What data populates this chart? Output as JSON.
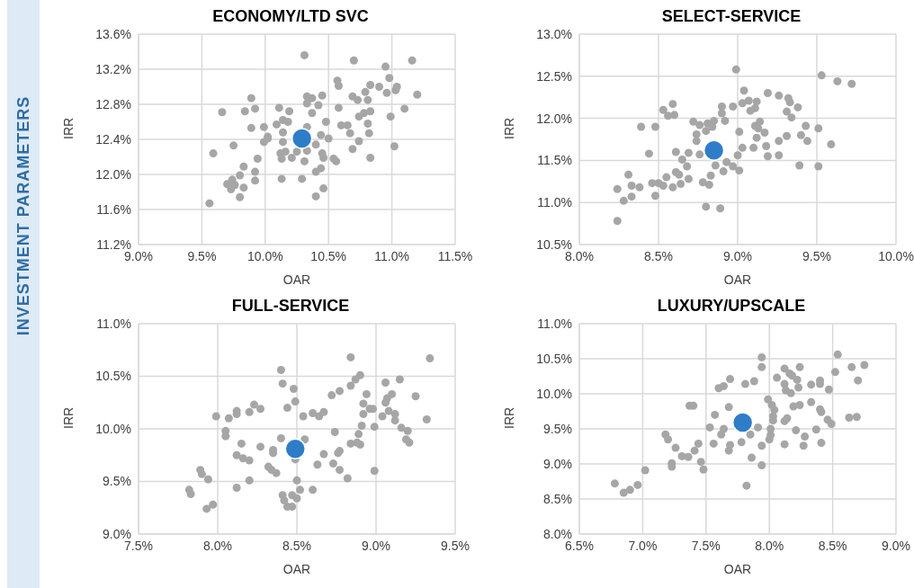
{
  "chart_data": [
    {
      "type": "scatter",
      "title": "ECONOMY/LTD SVC",
      "xlabel": "OAR",
      "ylabel": "IRR",
      "annotations": [
        "INVESTMENT PARAMETERS"
      ],
      "marker": "circle",
      "grid": true,
      "xlim": [
        9.0,
        11.5
      ],
      "xticks": [
        {
          "value": 9.0,
          "label": "9.0%"
        },
        {
          "value": 9.5,
          "label": "9.5%"
        },
        {
          "value": 10.0,
          "label": "10.0%"
        },
        {
          "value": 10.5,
          "label": "10.5%"
        },
        {
          "value": 11.0,
          "label": "11.0%"
        },
        {
          "value": 11.5,
          "label": "11.5%"
        }
      ],
      "ylim": [
        11.2,
        13.6
      ],
      "yticks": [
        {
          "value": 11.2,
          "label": "11.2%"
        },
        {
          "value": 11.6,
          "label": "11.6%"
        },
        {
          "value": 12.0,
          "label": "12.0%"
        },
        {
          "value": 12.4,
          "label": "12.4%"
        },
        {
          "value": 12.8,
          "label": "12.8%"
        },
        {
          "value": 13.2,
          "label": "13.2%"
        },
        {
          "value": 13.6,
          "label": "13.6%"
        }
      ],
      "series": [
        {
          "color": "#a6a6a6",
          "x": [
            10.31,
            10.7,
            11.16,
            10.95,
            10.57,
            10.58,
            10.98,
            10.83,
            10.9,
            11.04,
            11.03,
            10.79,
            10.96,
            11.2,
            10.69,
            10.73,
            10.81,
            10.33,
            10.37,
            10.45,
            10.33,
            10.42,
            9.89,
            9.66,
            9.84,
            9.92,
            10.11,
            10.19,
            10.37,
            10.58,
            10.83,
            10.78,
            10.74,
            11.1,
            10.99,
            10.48,
            10.81,
            10.6,
            10.65,
            10.67,
            10.82,
            9.89,
            9.99,
            10.09,
            10.14,
            10.18,
            10.14,
            10.02,
            10.02,
            9.99,
            10.33,
            10.44,
            10.5,
            10.14,
            9.75,
            10.4,
            10.74,
            10.69,
            11.02,
            9.59,
            10.12,
            10.16,
            10.25,
            10.33,
            10.13,
            10.21,
            10.31,
            10.45,
            10.46,
            10.54,
            10.56,
            10.83,
            9.94,
            9.83,
            9.92,
            9.92,
            9.8,
            9.74,
            9.7,
            9.76,
            9.73,
            9.83,
            9.8,
            9.56,
            10.13,
            10.29,
            10.4,
            10.44,
            10.46,
            10.4
          ],
          "values": [
            13.36,
            13.3,
            13.3,
            13.23,
            13.07,
            13.01,
            13.1,
            13.02,
            13.0,
            13.0,
            12.96,
            12.94,
            12.93,
            12.91,
            12.89,
            12.85,
            12.85,
            12.89,
            12.87,
            12.9,
            12.81,
            12.79,
            12.87,
            12.71,
            12.72,
            12.75,
            12.76,
            12.72,
            12.7,
            12.76,
            12.72,
            12.7,
            12.66,
            12.75,
            12.66,
            12.6,
            12.58,
            12.56,
            12.56,
            12.47,
            12.47,
            12.53,
            12.54,
            12.57,
            12.62,
            12.6,
            12.48,
            12.43,
            12.41,
            12.37,
            12.54,
            12.45,
            12.41,
            12.37,
            12.33,
            12.34,
            12.38,
            12.29,
            12.32,
            12.24,
            12.24,
            12.26,
            12.26,
            12.27,
            12.18,
            12.19,
            12.15,
            12.24,
            12.19,
            12.18,
            12.15,
            12.19,
            12.18,
            12.09,
            12.03,
            11.93,
            11.99,
            11.94,
            11.89,
            11.88,
            11.83,
            11.85,
            11.74,
            11.67,
            11.95,
            11.95,
            12.03,
            12.07,
            11.84,
            11.75
          ]
        },
        {
          "color": "#2e7dc9",
          "x": [
            10.29
          ],
          "values": [
            12.41
          ]
        }
      ]
    },
    {
      "type": "scatter",
      "title": "SELECT-SERVICE",
      "xlabel": "OAR",
      "ylabel": "IRR",
      "marker": "circle",
      "grid": true,
      "xlim": [
        8.0,
        10.0
      ],
      "xticks": [
        {
          "value": 8.0,
          "label": "8.0%"
        },
        {
          "value": 8.5,
          "label": "8.5%"
        },
        {
          "value": 9.0,
          "label": "9.0%"
        },
        {
          "value": 9.5,
          "label": "9.5%"
        },
        {
          "value": 10.0,
          "label": "10.0%"
        }
      ],
      "ylim": [
        10.5,
        13.0
      ],
      "yticks": [
        {
          "value": 10.5,
          "label": "10.5%"
        },
        {
          "value": 11.0,
          "label": "11.0%"
        },
        {
          "value": 11.5,
          "label": "11.5%"
        },
        {
          "value": 12.0,
          "label": "12.0%"
        },
        {
          "value": 12.5,
          "label": "12.5%"
        },
        {
          "value": 13.0,
          "label": "13.0%"
        }
      ],
      "series": [
        {
          "color": "#a6a6a6",
          "x": [
            8.99,
            9.53,
            9.63,
            9.72,
            9.04,
            9.19,
            9.26,
            9.32,
            9.33,
            9.38,
            9.31,
            9.34,
            9.07,
            9.12,
            9.03,
            9.11,
            9.08,
            8.97,
            8.9,
            8.9,
            8.59,
            8.53,
            8.56,
            8.6,
            8.39,
            8.48,
            8.72,
            8.76,
            8.81,
            8.85,
            8.84,
            8.8,
            8.92,
            8.74,
            8.74,
            9.01,
            9.14,
            9.11,
            9.13,
            9.17,
            9.12,
            9.26,
            9.31,
            9.43,
            9.51,
            9.4,
            9.44,
            9.59,
            9.1,
            9.18,
            9.03,
            9.0,
            9.19,
            9.26,
            9.39,
            9.51,
            8.44,
            8.61,
            8.69,
            8.76,
            8.65,
            8.68,
            8.86,
            8.93,
            8.97,
            9.01,
            8.91,
            8.83,
            8.78,
            8.82,
            8.61,
            8.63,
            8.69,
            8.64,
            8.55,
            8.53,
            8.59,
            8.46,
            8.5,
            8.48,
            8.31,
            8.33,
            8.38,
            8.24,
            8.33,
            8.28,
            8.8,
            8.89,
            8.24
          ],
          "values": [
            12.58,
            12.51,
            12.44,
            12.41,
            12.33,
            12.3,
            12.27,
            12.24,
            12.19,
            12.13,
            12.08,
            12.01,
            12.21,
            12.2,
            12.18,
            12.12,
            12.09,
            12.14,
            12.14,
            12.06,
            12.17,
            12.1,
            12.03,
            12.04,
            11.9,
            11.9,
            11.96,
            11.92,
            11.94,
            11.97,
            11.9,
            11.85,
            11.97,
            11.81,
            11.73,
            11.84,
            11.96,
            11.91,
            11.88,
            11.83,
            11.77,
            11.73,
            11.79,
            11.91,
            11.88,
            11.8,
            11.73,
            11.69,
            11.65,
            11.67,
            11.65,
            11.56,
            11.55,
            11.56,
            11.44,
            11.43,
            11.58,
            11.6,
            11.59,
            11.57,
            11.51,
            11.43,
            11.44,
            11.48,
            11.43,
            11.38,
            11.37,
            11.32,
            11.24,
            11.21,
            11.36,
            11.33,
            11.28,
            11.22,
            11.3,
            11.2,
            11.18,
            11.23,
            11.23,
            11.08,
            11.33,
            11.2,
            11.18,
            11.16,
            11.07,
            11.02,
            10.95,
            10.93,
            10.78
          ]
        },
        {
          "color": "#2e7dc9",
          "x": [
            8.85
          ],
          "values": [
            11.62
          ]
        }
      ]
    },
    {
      "type": "scatter",
      "title": "FULL-SERVICE",
      "xlabel": "OAR",
      "ylabel": "IRR",
      "marker": "circle",
      "grid": true,
      "xlim": [
        7.5,
        9.5
      ],
      "xticks": [
        {
          "value": 7.5,
          "label": "7.5%"
        },
        {
          "value": 8.0,
          "label": "8.0%"
        },
        {
          "value": 8.5,
          "label": "8.5%"
        },
        {
          "value": 9.0,
          "label": "9.0%"
        },
        {
          "value": 9.5,
          "label": "9.5%"
        }
      ],
      "ylim": [
        9.0,
        11.0
      ],
      "yticks": [
        {
          "value": 9.0,
          "label": "9.0%"
        },
        {
          "value": 9.5,
          "label": "9.5%"
        },
        {
          "value": 10.0,
          "label": "10.0%"
        },
        {
          "value": 10.5,
          "label": "10.5%"
        },
        {
          "value": 11.0,
          "label": "11.0%"
        }
      ],
      "series": [
        {
          "color": "#a6a6a6",
          "x": [
            8.84,
            9.34,
            8.4,
            8.41,
            8.48,
            8.49,
            8.44,
            8.9,
            8.87,
            8.84,
            8.77,
            8.72,
            8.94,
            9.06,
            9.15,
            9.1,
            9.07,
            9.06,
            9.25,
            8.92,
            8.96,
            8.98,
            8.92,
            9.04,
            9.08,
            9.12,
            9.12,
            9.32,
            9.16,
            9.2,
            9.19,
            9.21,
            8.99,
            8.91,
            8.89,
            8.84,
            8.88,
            8.9,
            8.74,
            8.77,
            8.76,
            8.67,
            8.73,
            8.63,
            8.77,
            8.82,
            8.99,
            8.6,
            8.54,
            8.64,
            8.67,
            7.99,
            8.07,
            8.12,
            8.12,
            8.2,
            8.23,
            8.27,
            8.05,
            8.05,
            8.4,
            8.55,
            8.15,
            8.27,
            8.35,
            8.35,
            8.12,
            8.16,
            8.2,
            8.32,
            8.34,
            8.37,
            8.49,
            8.5,
            8.52,
            8.6,
            8.2,
            8.12,
            7.89,
            7.9,
            7.94,
            7.82,
            7.83,
            7.93,
            7.97,
            8.41,
            8.42,
            8.44,
            8.47,
            8.47,
            8.5
          ],
          "values": [
            10.68,
            10.67,
            10.56,
            10.43,
            10.38,
            10.26,
            10.2,
            10.51,
            10.47,
            10.41,
            10.36,
            10.32,
            10.33,
            10.44,
            10.47,
            10.33,
            10.29,
            10.25,
            10.31,
            10.24,
            10.19,
            10.19,
            10.14,
            10.12,
            10.17,
            10.14,
            10.08,
            10.09,
            10.01,
            9.98,
            9.9,
            9.87,
            10.02,
            10.03,
            9.95,
            9.86,
            9.87,
            9.85,
            9.97,
            9.79,
            9.77,
            9.76,
            9.67,
            9.66,
            9.61,
            9.53,
            9.6,
            10.15,
            10.12,
            10.12,
            10.16,
            10.12,
            10.1,
            10.17,
            10.14,
            10.16,
            10.23,
            10.19,
            9.98,
            9.93,
            9.91,
            9.9,
            9.86,
            9.83,
            9.8,
            9.77,
            9.75,
            9.72,
            9.7,
            9.64,
            9.61,
            9.58,
            9.71,
            9.51,
            9.42,
            9.42,
            9.51,
            9.44,
            9.61,
            9.57,
            9.52,
            9.42,
            9.38,
            9.24,
            9.28,
            9.37,
            9.32,
            9.26,
            9.26,
            9.37,
            9.34
          ]
        },
        {
          "color": "#2e7dc9",
          "x": [
            8.49
          ],
          "values": [
            9.81
          ]
        }
      ]
    },
    {
      "type": "scatter",
      "title": "LUXURY/UPSCALE",
      "xlabel": "OAR",
      "ylabel": "IRR",
      "marker": "circle",
      "grid": true,
      "xlim": [
        6.5,
        9.0
      ],
      "xticks": [
        {
          "value": 6.5,
          "label": "6.5%"
        },
        {
          "value": 7.0,
          "label": "7.0%"
        },
        {
          "value": 7.5,
          "label": "7.5%"
        },
        {
          "value": 8.0,
          "label": "8.0%"
        },
        {
          "value": 8.5,
          "label": "8.5%"
        },
        {
          "value": 9.0,
          "label": "9.0%"
        }
      ],
      "ylim": [
        8.0,
        11.0
      ],
      "yticks": [
        {
          "value": 8.0,
          "label": "8.0%"
        },
        {
          "value": 8.5,
          "label": "8.5%"
        },
        {
          "value": 9.0,
          "label": "9.0%"
        },
        {
          "value": 9.5,
          "label": "9.5%"
        },
        {
          "value": 10.0,
          "label": "10.0%"
        },
        {
          "value": 10.5,
          "label": "10.5%"
        },
        {
          "value": 11.0,
          "label": "11.0%"
        }
      ],
      "series": [
        {
          "color": "#a6a6a6",
          "x": [
            8.54,
            7.94,
            7.94,
            8.75,
            8.65,
            8.52,
            8.7,
            8.24,
            8.12,
            8.16,
            8.18,
            8.06,
            8.22,
            8.12,
            8.23,
            8.13,
            8.17,
            8.33,
            8.4,
            8.4,
            8.47,
            7.69,
            7.64,
            7.6,
            7.81,
            7.88,
            7.99,
            8.02,
            8.04,
            8.03,
            8.03,
            8.19,
            8.24,
            8.33,
            8.4,
            8.41,
            8.46,
            8.49,
            8.63,
            8.69,
            8.12,
            8.14,
            8.01,
            8.01,
            8.0,
            8.21,
            8.28,
            8.37,
            8.27,
            8.41,
            8.12,
            7.37,
            7.4,
            7.68,
            7.57,
            7.53,
            7.64,
            7.62,
            7.56,
            7.91,
            7.85,
            7.78,
            7.69,
            7.68,
            7.94,
            7.86,
            7.94,
            7.18,
            7.2,
            7.26,
            7.31,
            7.36,
            7.41,
            7.44,
            7.23,
            7.23,
            7.46,
            7.48,
            7.02,
            6.78,
            6.85,
            6.9,
            6.96,
            7.82
          ],
          "values": [
            10.56,
            10.52,
            10.38,
            10.41,
            10.38,
            10.31,
            10.19,
            10.38,
            10.36,
            10.29,
            10.26,
            10.23,
            10.2,
            10.14,
            10.09,
            10.05,
            10.01,
            10.13,
            10.19,
            10.14,
            10.06,
            10.21,
            10.11,
            10.08,
            10.14,
            10.18,
            9.92,
            9.84,
            9.77,
            9.68,
            9.62,
            9.82,
            9.84,
            9.88,
            9.78,
            9.74,
            9.63,
            9.57,
            9.66,
            9.67,
            9.61,
            9.65,
            9.5,
            9.41,
            9.35,
            9.48,
            9.39,
            9.49,
            9.26,
            9.3,
            9.28,
            9.83,
            9.83,
            9.81,
            9.7,
            9.52,
            9.5,
            9.42,
            9.29,
            9.52,
            9.42,
            9.31,
            9.27,
            9.19,
            9.26,
            9.09,
            8.98,
            9.42,
            9.35,
            9.23,
            9.11,
            9.1,
            9.19,
            9.29,
            9.01,
            8.96,
            9.03,
            8.92,
            8.91,
            8.72,
            8.59,
            8.63,
            8.7,
            8.69
          ]
        },
        {
          "color": "#2e7dc9",
          "x": [
            7.79
          ],
          "values": [
            9.59
          ]
        }
      ]
    }
  ]
}
